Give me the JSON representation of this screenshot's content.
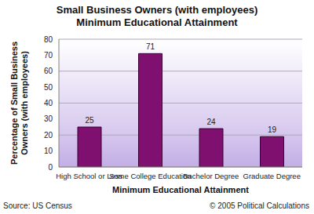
{
  "chart_data": {
    "type": "bar",
    "title": "Small Business Owners (with employees)",
    "subtitle": "Minimum Educational Attainment",
    "x_label": "Minimum Educational Attainment",
    "y_label": "Percentage of Small Business Owners (with employees)",
    "categories": [
      "High School or Less",
      "Some College Education",
      "Bachelor Degree",
      "Graduate Degree"
    ],
    "values": [
      25,
      71,
      24,
      19
    ],
    "color": "#7f106f",
    "ylim": [
      0,
      80
    ],
    "yticks": [
      0,
      10,
      20,
      30,
      40,
      50,
      60,
      70,
      80
    ],
    "grid": true,
    "data_labels": true,
    "annotations": [
      "Source: US Census",
      "© 2005 Political Calculations"
    ]
  }
}
